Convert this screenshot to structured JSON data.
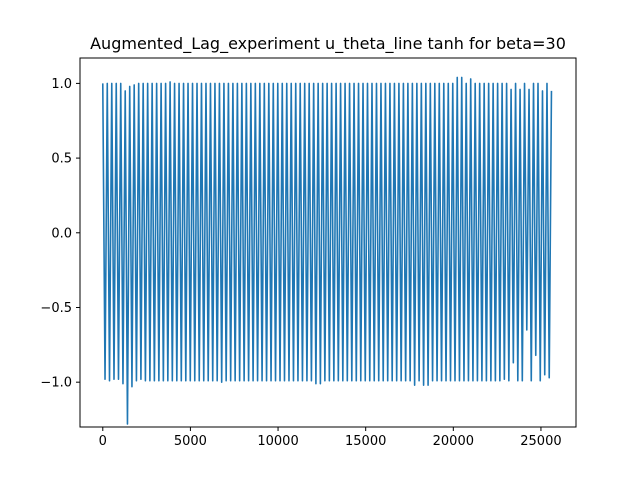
{
  "chart_data": {
    "type": "line",
    "title": "Augmented_Lag_experiment u_theta_line tanh for beta=30",
    "xlabel": "",
    "ylabel": "",
    "xlim": [
      -1300,
      27000
    ],
    "ylim": [
      -1.3,
      1.17
    ],
    "grid": false,
    "legend": "none",
    "line_color": "#1f77b4",
    "x_ticks": [
      {
        "value": 0,
        "label": "0"
      },
      {
        "value": 5000,
        "label": "5000"
      },
      {
        "value": 10000,
        "label": "10000"
      },
      {
        "value": 15000,
        "label": "15000"
      },
      {
        "value": 20000,
        "label": "20000"
      },
      {
        "value": 25000,
        "label": "25000"
      }
    ],
    "y_ticks": [
      {
        "value": 1.0,
        "label": "1.0"
      },
      {
        "value": 0.5,
        "label": "0.5"
      },
      {
        "value": 0.0,
        "label": "0.0"
      },
      {
        "value": -0.5,
        "label": "−0.5"
      },
      {
        "value": -1.0,
        "label": "−1.0"
      }
    ],
    "series": [
      {
        "oscillation": {
          "x_start": 0,
          "x_end": 25600,
          "period": 256,
          "y_min": -0.99,
          "y_max": 1.0
        },
        "points": [
          [
            0,
            0.62
          ],
          [
            30,
            -0.65
          ],
          [
            60,
            0.2
          ],
          [
            128,
            1.0
          ],
          [
            256,
            -0.98
          ],
          [
            400,
            1.0
          ],
          [
            520,
            -0.98
          ],
          [
            650,
            1.0
          ],
          [
            780,
            -0.98
          ],
          [
            900,
            1.0
          ],
          [
            1040,
            -1.01
          ],
          [
            1160,
            0.99
          ],
          [
            1300,
            -1.24
          ],
          [
            1400,
            0.95
          ],
          [
            1500,
            -1.28
          ],
          [
            1640,
            0.98
          ],
          [
            1780,
            -1.03
          ],
          [
            1900,
            0.99
          ],
          [
            2050,
            -0.98
          ],
          [
            3800,
            1.01
          ],
          [
            4000,
            1.0
          ],
          [
            6900,
            -1.0
          ],
          [
            7200,
            -0.99
          ],
          [
            12100,
            -1.01
          ],
          [
            12400,
            -1.01
          ],
          [
            14500,
            0.99
          ],
          [
            14700,
            1.0
          ],
          [
            17900,
            -1.02
          ],
          [
            18200,
            -1.02
          ],
          [
            18500,
            -1.02
          ],
          [
            20300,
            1.04
          ],
          [
            20600,
            1.04
          ],
          [
            20900,
            1.03
          ],
          [
            21200,
            1.0
          ],
          [
            22900,
            -0.98
          ],
          [
            23200,
            0.96
          ],
          [
            23500,
            -0.87
          ],
          [
            23800,
            0.96
          ],
          [
            24100,
            -0.65
          ],
          [
            24400,
            0.96
          ],
          [
            24700,
            -0.82
          ],
          [
            25000,
            0.95
          ],
          [
            25300,
            -0.95
          ],
          [
            25500,
            0.95
          ],
          [
            25600,
            -0.97
          ]
        ]
      }
    ]
  }
}
